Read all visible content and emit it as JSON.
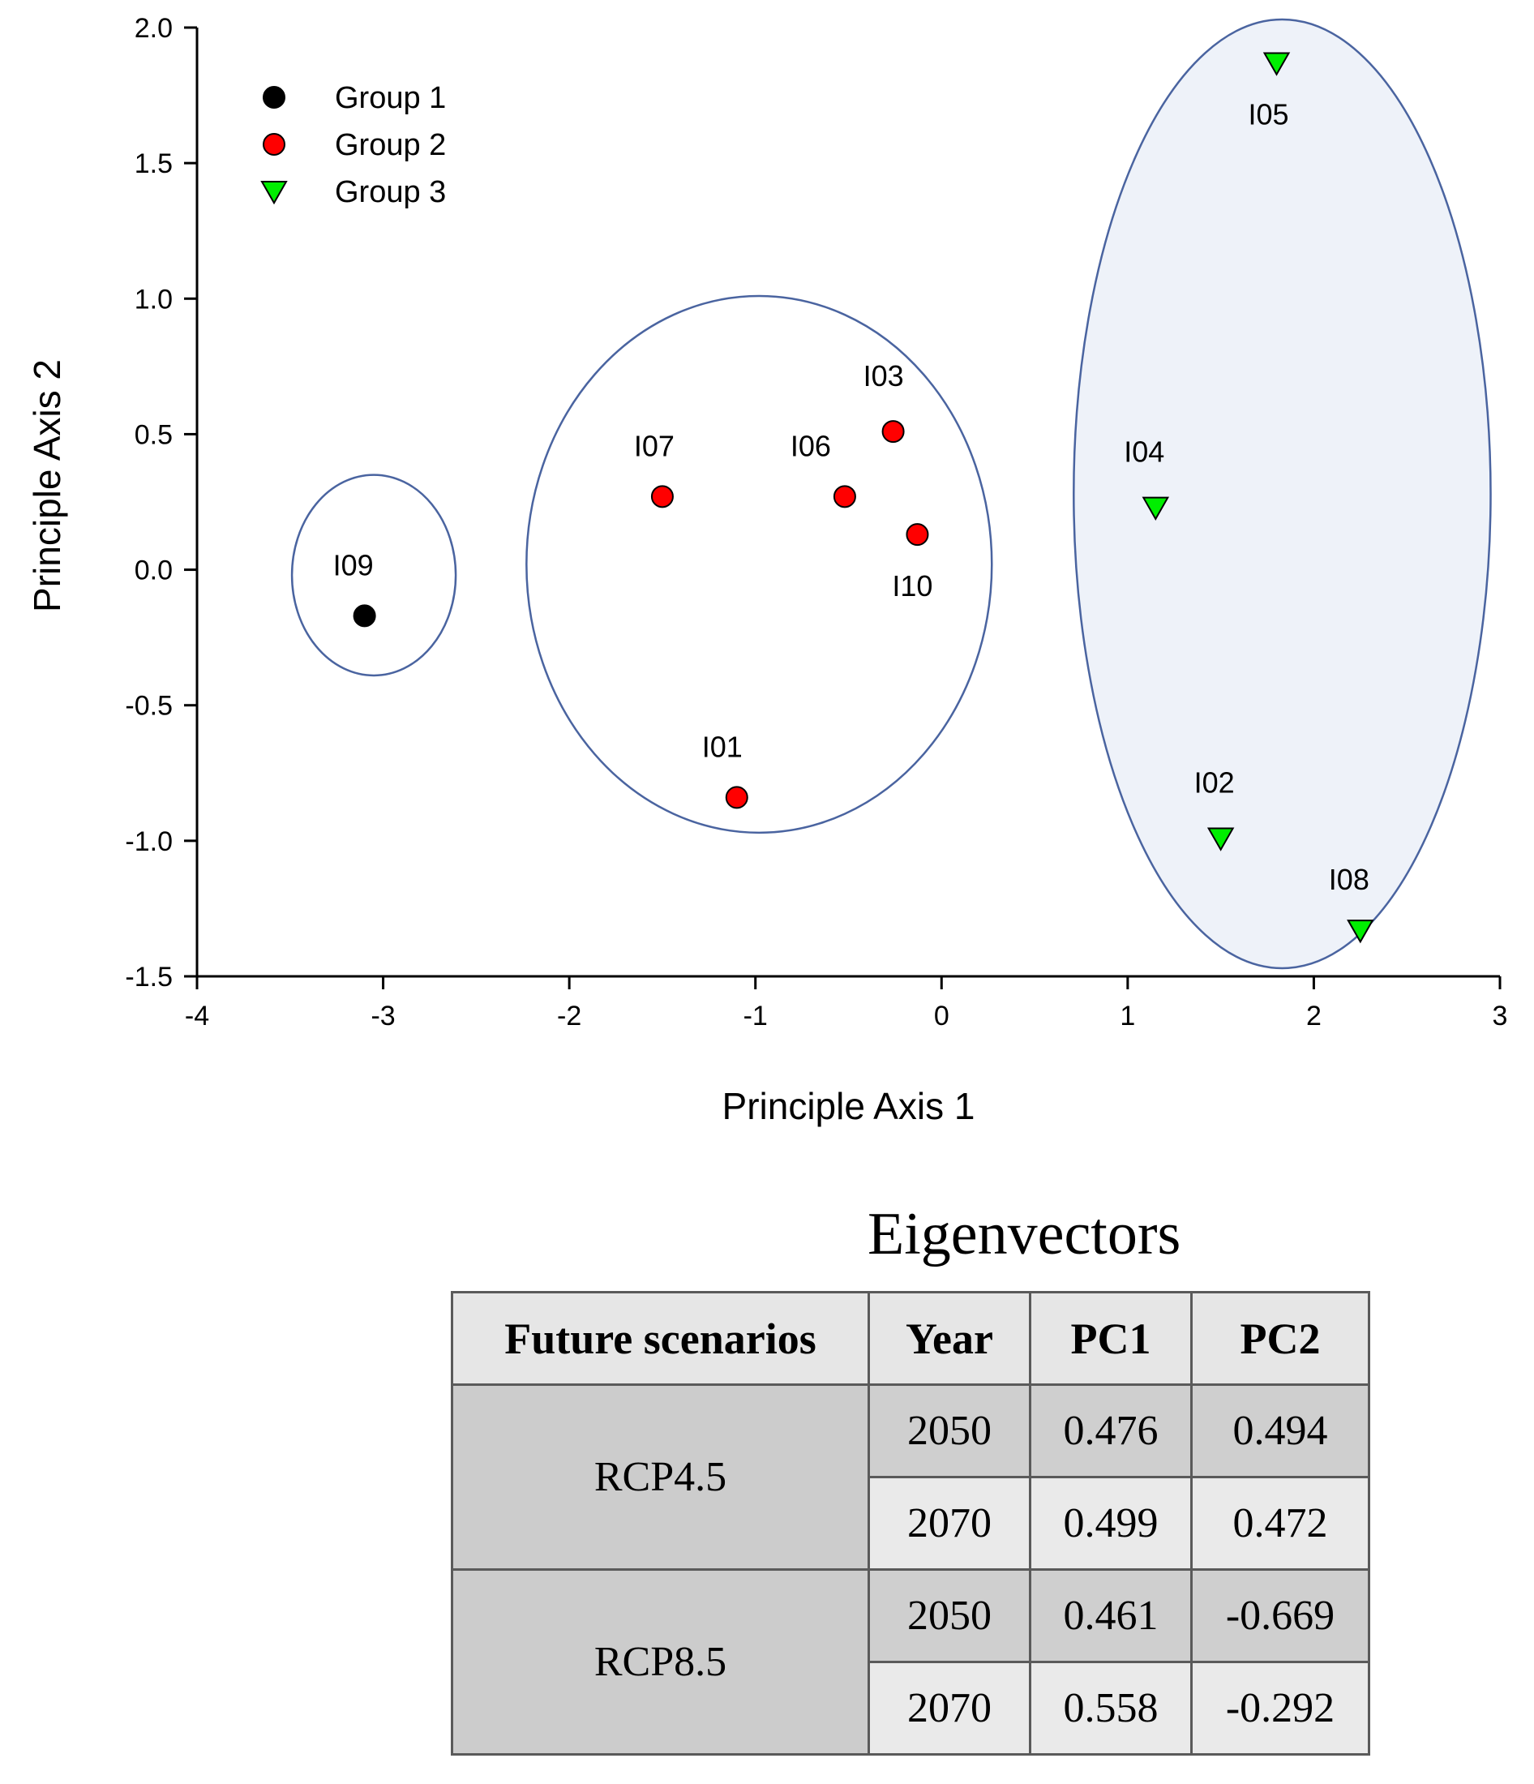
{
  "chart_data": {
    "type": "scatter",
    "xlabel": "Principle Axis 1",
    "ylabel": "Principle Axis 2",
    "xlim": [
      -4,
      3
    ],
    "ylim": [
      -1.5,
      2.0
    ],
    "x_ticks": [
      "-4",
      "-3",
      "-2",
      "-1",
      "0",
      "1",
      "2",
      "3"
    ],
    "y_ticks": [
      "2.0",
      "1.5",
      "1.0",
      "0.5",
      "0.0",
      "-0.5",
      "-1.0",
      "-1.5"
    ],
    "grid": false,
    "legend_position": "top-left",
    "series": [
      {
        "name": "Group 1",
        "marker": "circle",
        "color": "#000000",
        "points": [
          {
            "label": "I09",
            "x": -3.1,
            "y": -0.17
          }
        ]
      },
      {
        "name": "Group 2",
        "marker": "circle",
        "color": "#ff0000",
        "points": [
          {
            "label": "I07",
            "x": -1.5,
            "y": 0.27
          },
          {
            "label": "I06",
            "x": -0.52,
            "y": 0.27
          },
          {
            "label": "I03",
            "x": -0.26,
            "y": 0.51
          },
          {
            "label": "I10",
            "x": -0.13,
            "y": 0.13
          },
          {
            "label": "I01",
            "x": -1.1,
            "y": -0.84
          }
        ]
      },
      {
        "name": "Group 3",
        "marker": "triangle-down",
        "color": "#00ee00",
        "points": [
          {
            "label": "I05",
            "x": 1.8,
            "y": 1.87
          },
          {
            "label": "I04",
            "x": 1.15,
            "y": 0.23
          },
          {
            "label": "I02",
            "x": 1.5,
            "y": -0.99
          },
          {
            "label": "I08",
            "x": 2.25,
            "y": -1.33
          }
        ]
      }
    ],
    "group_ellipses": [
      {
        "group": "Group 1",
        "cx": -3.05,
        "cy": -0.02,
        "rx": 0.44,
        "ry": 0.37,
        "fill": "none"
      },
      {
        "group": "Group 2",
        "cx": -0.98,
        "cy": 0.02,
        "rx": 1.25,
        "ry": 0.99,
        "fill": "none"
      },
      {
        "group": "Group 3",
        "cx": 1.83,
        "cy": 0.28,
        "rx": 1.12,
        "ry": 1.75,
        "fill": "#eef2f9"
      }
    ]
  },
  "eigen_table": {
    "title": "Eigenvectors",
    "headers": [
      "Future scenarios",
      "Year",
      "PC1",
      "PC2"
    ],
    "groups": [
      {
        "scenario": "RCP4.5",
        "rows": [
          {
            "year": "2050",
            "pc1": "0.476",
            "pc2": "0.494"
          },
          {
            "year": "2070",
            "pc1": "0.499",
            "pc2": "0.472"
          }
        ]
      },
      {
        "scenario": "RCP8.5",
        "rows": [
          {
            "year": "2050",
            "pc1": "0.461",
            "pc2": "-0.669"
          },
          {
            "year": "2070",
            "pc1": "0.558",
            "pc2": "-0.292"
          }
        ]
      }
    ]
  },
  "colors": {
    "axis": "#000000",
    "ellipse_stroke": "#4a64a0",
    "marker_stroke": "#000000"
  }
}
